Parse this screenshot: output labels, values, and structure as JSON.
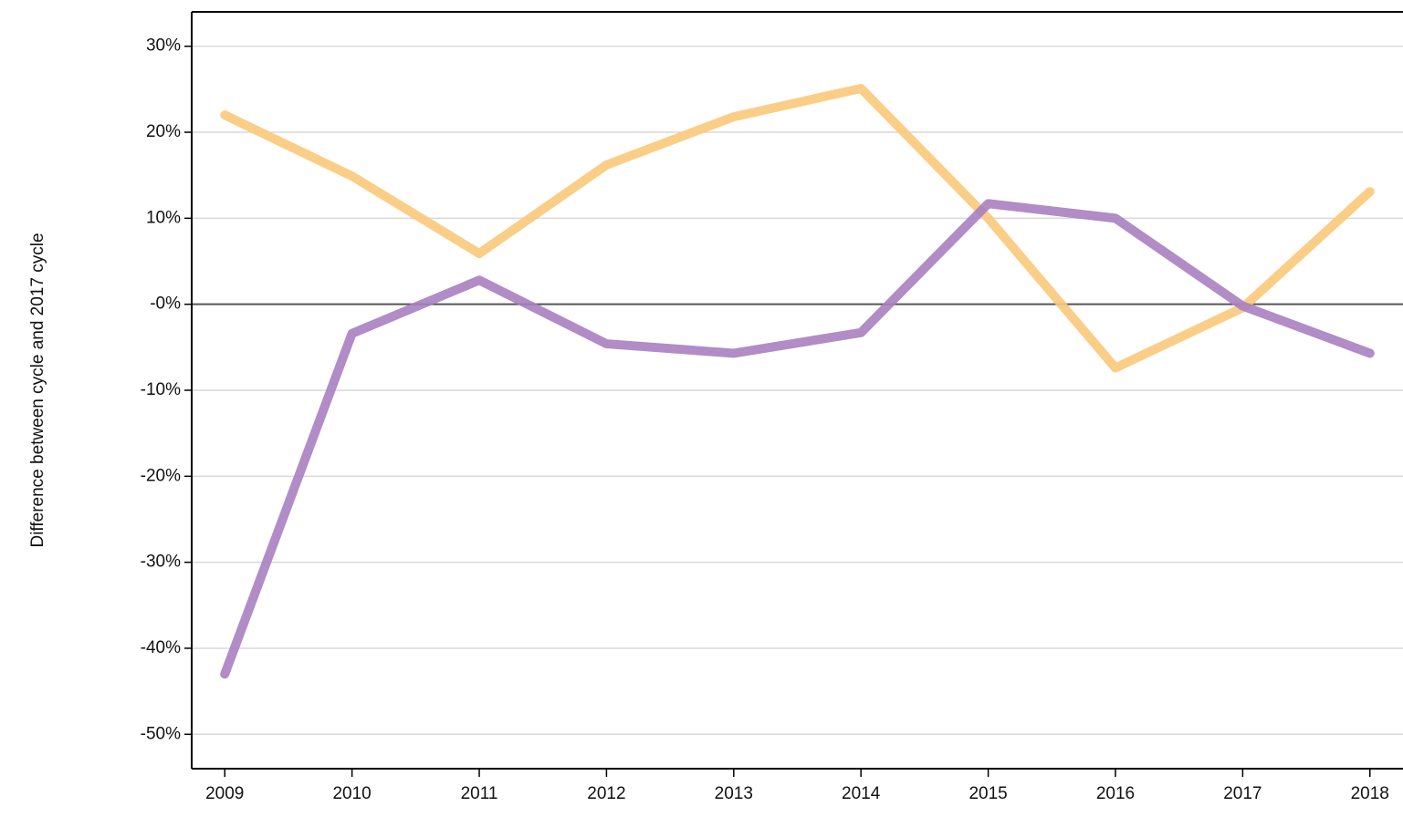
{
  "chart_data": {
    "type": "line",
    "y_label": "Difference between cycle and 2017 cycle",
    "x": [
      2009,
      2010,
      2011,
      2012,
      2013,
      2014,
      2015,
      2016,
      2017,
      2018
    ],
    "series": [
      {
        "color": "#f9c97a",
        "values": [
          22.0,
          14.9,
          5.9,
          16.2,
          21.8,
          25.1,
          10.0,
          -7.4,
          -0.4,
          13.1
        ]
      },
      {
        "color": "#a97fc0",
        "values": [
          -43.0,
          -3.4,
          2.8,
          -4.6,
          -5.7,
          -3.3,
          11.7,
          10.0,
          -0.2,
          -5.7
        ]
      }
    ],
    "xlim": [
      2008.74,
      2018.26
    ],
    "xticks": [
      2009,
      2010,
      2011,
      2012,
      2013,
      2014,
      2015,
      2016,
      2017,
      2018
    ],
    "ylim": [
      -54,
      34
    ],
    "yticks": [
      {
        "value": 30,
        "label": "30%"
      },
      {
        "value": 20,
        "label": "20%"
      },
      {
        "value": 10,
        "label": "10%"
      },
      {
        "value": 0,
        "label": "-0%"
      },
      {
        "value": -10,
        "label": "-10%"
      },
      {
        "value": -20,
        "label": "-20%"
      },
      {
        "value": -30,
        "label": "-30%"
      },
      {
        "value": -40,
        "label": "-40%"
      },
      {
        "value": -50,
        "label": "-50%"
      }
    ],
    "grid": true,
    "zero_line": true
  }
}
